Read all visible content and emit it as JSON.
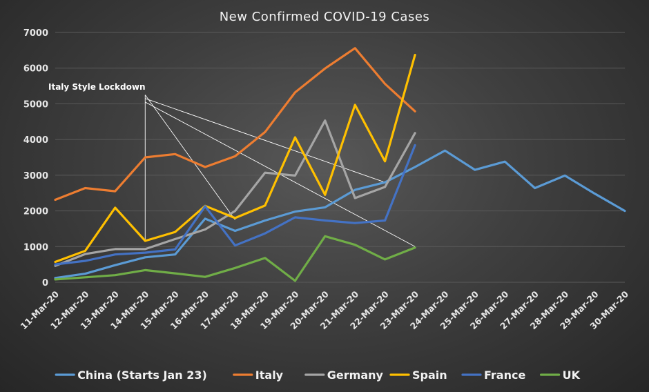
{
  "chart_data": {
    "type": "line",
    "title": "New Confirmed COVID-19 Cases",
    "xlabel": "",
    "ylabel": "",
    "ylim": [
      0,
      7000
    ],
    "yticks": [
      0,
      1000,
      2000,
      3000,
      4000,
      5000,
      6000,
      7000
    ],
    "grid": "horizontal",
    "legend_position": "bottom",
    "categories": [
      "11-Mar-20",
      "12-Mar-20",
      "13-Mar-20",
      "14-Mar-20",
      "15-Mar-20",
      "16-Mar-20",
      "17-Mar-20",
      "18-Mar-20",
      "19-Mar-20",
      "20-Mar-20",
      "21-Mar-20",
      "22-Mar-20",
      "23-Mar-20",
      "24-Mar-20",
      "25-Mar-20",
      "26-Mar-20",
      "27-Mar-20",
      "28-Mar-20",
      "29-Mar-20",
      "30-Mar-20"
    ],
    "series": [
      {
        "name": "China (Starts Jan 23)",
        "color": "#5b9bd5",
        "values": [
          120,
          240,
          480,
          700,
          780,
          1780,
          1440,
          1730,
          1980,
          2100,
          2590,
          2800,
          3230,
          3690,
          3150,
          3380,
          2640,
          2990,
          2480,
          2000
        ]
      },
      {
        "name": "Italy",
        "color": "#ed7d31",
        "values": [
          2310,
          2640,
          2550,
          3500,
          3590,
          3230,
          3530,
          4210,
          5320,
          5990,
          6560,
          5560,
          4790,
          null,
          null,
          null,
          null,
          null,
          null,
          null
        ]
      },
      {
        "name": "Germany",
        "color": "#a5a5a5",
        "values": [
          460,
          790,
          930,
          930,
          1210,
          1480,
          2000,
          3070,
          2990,
          4530,
          2360,
          2670,
          4180,
          null,
          null,
          null,
          null,
          null,
          null,
          null
        ]
      },
      {
        "name": "Spain",
        "color": "#ffc000",
        "values": [
          570,
          880,
          2090,
          1160,
          1410,
          2140,
          1800,
          2150,
          4060,
          2450,
          4970,
          3390,
          6370,
          null,
          null,
          null,
          null,
          null,
          null,
          null
        ]
      },
      {
        "name": "France",
        "color": "#4472c4",
        "values": [
          500,
          600,
          780,
          830,
          920,
          2130,
          1030,
          1370,
          1820,
          1730,
          1660,
          1730,
          3840,
          null,
          null,
          null,
          null,
          null,
          null,
          null
        ]
      },
      {
        "name": "UK",
        "color": "#70ad47",
        "values": [
          80,
          140,
          200,
          340,
          250,
          150,
          400,
          680,
          40,
          1290,
          1050,
          640,
          970,
          null,
          null,
          null,
          null,
          null,
          null,
          null
        ]
      }
    ],
    "annotations": [
      {
        "text": "Italy Style Lockdown",
        "color": "#ffffff",
        "arrows": [
          {
            "from": {
              "x": "14-Mar-20",
              "y": 5250
            },
            "to": {
              "x": "14-Mar-20",
              "y": 1180
            }
          },
          {
            "from": {
              "x": "14-Mar-20",
              "y": 5250
            },
            "to": {
              "x": "17-Mar-20",
              "y": 1750
            }
          },
          {
            "from": {
              "x": "14-Mar-20",
              "y": 5050
            },
            "to": {
              "x": "23-Mar-20",
              "y": 1000
            }
          },
          {
            "from": {
              "x": "14-Mar-20",
              "y": 5150
            },
            "to": {
              "x": "22-Mar-20",
              "y": 2800
            }
          }
        ]
      }
    ]
  }
}
